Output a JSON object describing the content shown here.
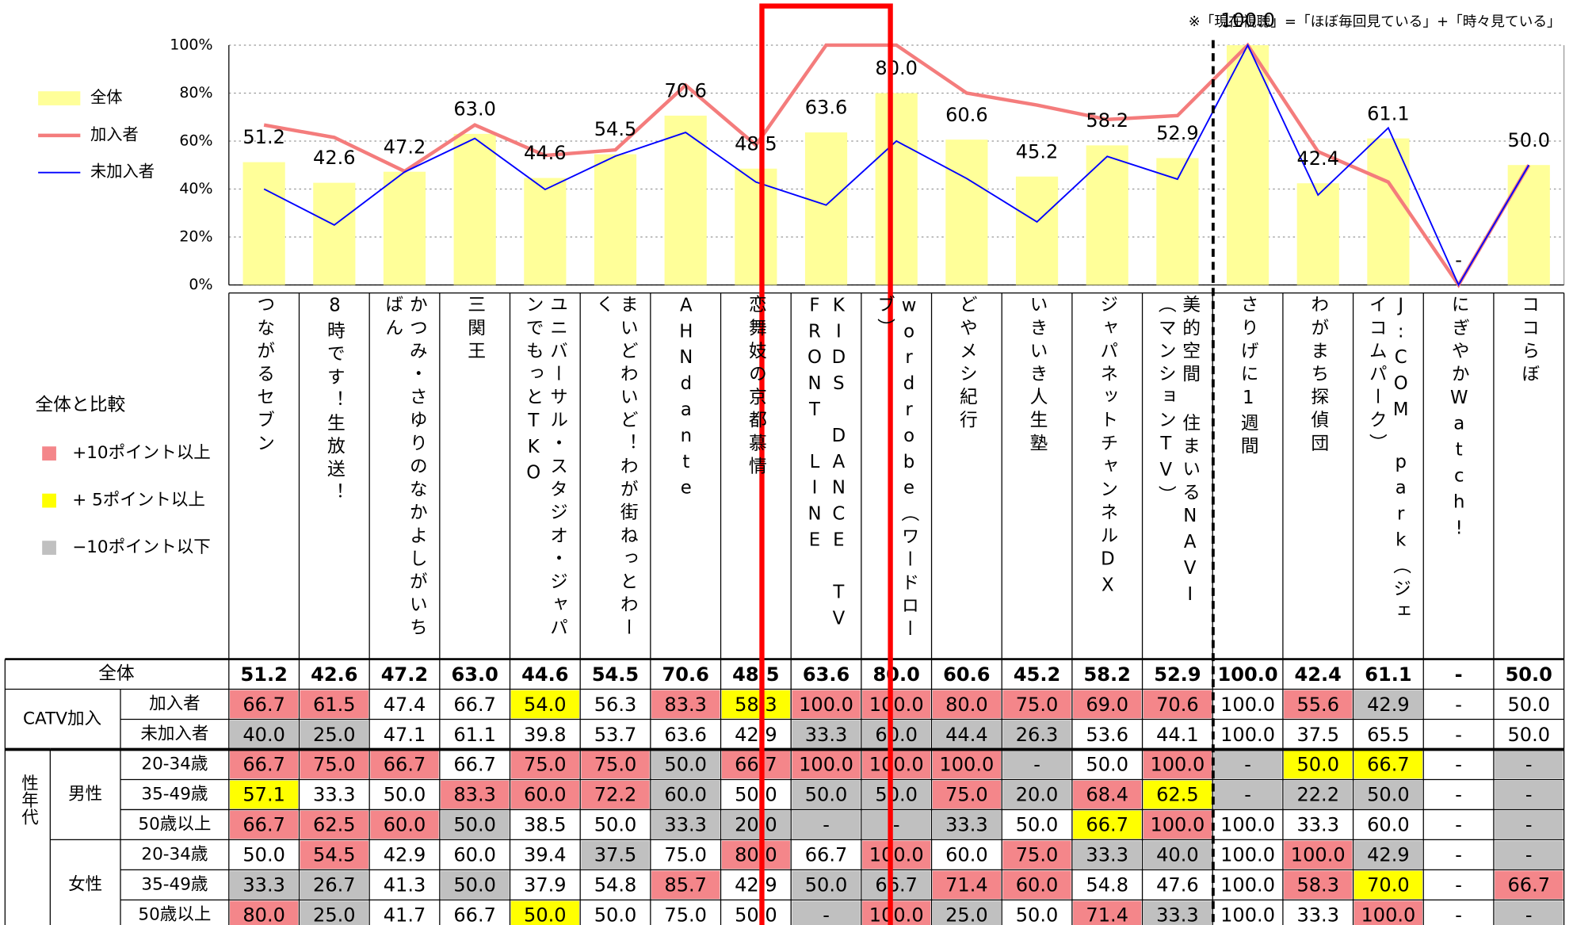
{
  "note": "※「現在視聴」=「ほぼ毎回見ている」+「時々見ている」",
  "chart_data": {
    "type": "bar",
    "categories": [
      "つながるセブン",
      "8時です！生放送！",
      "かつみ・さゆりのなかよしがいちばん",
      "三関王",
      "ユニバーサル・スタジオ・ジャパンでもっとTKO",
      "まいどわいど！わが街ねっとわーく",
      "AHNdante",
      "恋舞妓の京都慕情",
      "KIDS DANCE TV FRONT LINE",
      "wordrobe（ワードローブ）",
      "どやメシ紀行",
      "いきいき人生塾",
      "ジャパネットチャンネルDX",
      "美的空間 住まいるNAVI（マンションTV）",
      "さりげに1週間",
      "わがまち探偵団",
      "J:COM park（ジェイコムパーク）",
      "にぎやかWatch!",
      "ココらぼ"
    ],
    "series": [
      {
        "name": "全体",
        "type": "bar",
        "color": "#ffff99",
        "values": [
          51.2,
          42.6,
          47.2,
          63,
          44.6,
          54.5,
          70.6,
          48.5,
          63.6,
          80,
          60.6,
          45.2,
          58.2,
          52.9,
          100,
          42.4,
          61.1,
          null,
          50
        ],
        "value_labels": [
          "51.2",
          "42.6",
          "47.2",
          "63.0",
          "44.6",
          "54.5",
          "70.6",
          "48.5",
          "63.6",
          "80.0",
          "60.6",
          "45.2",
          "58.2",
          "52.9",
          "100.0",
          "42.4",
          "61.1",
          "-",
          "50.0"
        ]
      },
      {
        "name": "加入者",
        "type": "line",
        "color": "#f47c7c",
        "values": [
          66.7,
          61.5,
          47.4,
          66.7,
          54,
          56.3,
          83.3,
          58.3,
          100,
          100,
          80,
          75,
          69,
          70.6,
          100,
          55.6,
          42.9,
          0,
          50
        ]
      },
      {
        "name": "未加入者",
        "type": "line",
        "color": "#0000ff",
        "values": [
          40,
          25,
          47.1,
          61.1,
          39.8,
          53.7,
          63.6,
          42.9,
          33.3,
          60,
          44.4,
          26.3,
          53.6,
          44.1,
          100,
          37.5,
          65.5,
          0,
          50
        ]
      }
    ],
    "ylim": [
      0,
      100
    ],
    "yticks": [
      {
        "value": 0,
        "label": "0%"
      },
      {
        "value": 20,
        "label": "20%"
      },
      {
        "value": 40,
        "label": "40%"
      },
      {
        "value": 60,
        "label": "60%"
      },
      {
        "value": 80,
        "label": "80%"
      },
      {
        "value": 100,
        "label": "100%"
      }
    ],
    "grid": true
  },
  "comparison_legend": {
    "title": "全体と比較",
    "items": [
      {
        "label": "+10ポイント以上",
        "color": "#f4868a"
      },
      {
        "label": "+ 5ポイント以上",
        "color": "#ffff00"
      },
      {
        "label": "−10ポイント以下",
        "color": "#c0c0c0"
      }
    ]
  },
  "table": {
    "total": {
      "label": "全体",
      "cells": [
        "51.2",
        "42.6",
        "47.2",
        "63.0",
        "44.6",
        "54.5",
        "70.6",
        "48.5",
        "63.6",
        "80.0",
        "60.6",
        "45.2",
        "58.2",
        "52.9",
        "100.0",
        "42.4",
        "61.1",
        "-",
        "50.0"
      ]
    },
    "catv": {
      "label": "CATV加入",
      "rows": [
        {
          "label": "加入者",
          "cells": [
            "66.7",
            "61.5",
            "47.4",
            "66.7",
            "54.0",
            "56.3",
            "83.3",
            "58.3",
            "100.0",
            "100.0",
            "80.0",
            "75.0",
            "69.0",
            "70.6",
            "100.0",
            "55.6",
            "42.9",
            "-",
            "50.0"
          ],
          "fills": [
            0,
            0,
            null,
            null,
            1,
            null,
            0,
            1,
            0,
            0,
            0,
            0,
            0,
            0,
            null,
            0,
            2,
            null,
            null
          ]
        },
        {
          "label": "未加入者",
          "cells": [
            "40.0",
            "25.0",
            "47.1",
            "61.1",
            "39.8",
            "53.7",
            "63.6",
            "42.9",
            "33.3",
            "60.0",
            "44.4",
            "26.3",
            "53.6",
            "44.1",
            "100.0",
            "37.5",
            "65.5",
            "-",
            "50.0"
          ],
          "fills": [
            2,
            2,
            null,
            null,
            null,
            null,
            null,
            null,
            2,
            2,
            2,
            2,
            null,
            null,
            null,
            null,
            null,
            null,
            null
          ]
        }
      ]
    },
    "demo": {
      "label": "性年代",
      "groups": [
        {
          "label": "男性",
          "rows": [
            {
              "label": "20-34歳",
              "cells": [
                "66.7",
                "75.0",
                "66.7",
                "66.7",
                "75.0",
                "75.0",
                "50.0",
                "66.7",
                "100.0",
                "100.0",
                "100.0",
                "-",
                "50.0",
                "100.0",
                "-",
                "50.0",
                "66.7",
                "-",
                "-"
              ],
              "fills": [
                0,
                0,
                0,
                null,
                0,
                0,
                2,
                0,
                0,
                0,
                0,
                2,
                null,
                0,
                2,
                1,
                1,
                null,
                2
              ]
            },
            {
              "label": "35-49歳",
              "cells": [
                "57.1",
                "33.3",
                "50.0",
                "83.3",
                "60.0",
                "72.2",
                "60.0",
                "50.0",
                "50.0",
                "50.0",
                "75.0",
                "20.0",
                "68.4",
                "62.5",
                "-",
                "22.2",
                "50.0",
                "-",
                "-"
              ],
              "fills": [
                1,
                null,
                null,
                0,
                0,
                0,
                2,
                null,
                2,
                2,
                0,
                2,
                0,
                1,
                2,
                2,
                2,
                null,
                2
              ]
            },
            {
              "label": "50歳以上",
              "cells": [
                "66.7",
                "62.5",
                "60.0",
                "50.0",
                "38.5",
                "50.0",
                "33.3",
                "20.0",
                "-",
                "-",
                "33.3",
                "50.0",
                "66.7",
                "100.0",
                "100.0",
                "33.3",
                "60.0",
                "-",
                "-"
              ],
              "fills": [
                0,
                0,
                0,
                2,
                null,
                null,
                2,
                2,
                2,
                2,
                2,
                null,
                1,
                0,
                null,
                null,
                null,
                null,
                2
              ]
            }
          ]
        },
        {
          "label": "女性",
          "rows": [
            {
              "label": "20-34歳",
              "cells": [
                "50.0",
                "54.5",
                "42.9",
                "60.0",
                "39.4",
                "37.5",
                "75.0",
                "80.0",
                "66.7",
                "100.0",
                "60.0",
                "75.0",
                "33.3",
                "40.0",
                "100.0",
                "100.0",
                "42.9",
                "-",
                "-"
              ],
              "fills": [
                null,
                0,
                null,
                null,
                null,
                2,
                null,
                0,
                null,
                0,
                null,
                0,
                2,
                2,
                null,
                0,
                2,
                null,
                2
              ]
            },
            {
              "label": "35-49歳",
              "cells": [
                "33.3",
                "26.7",
                "41.3",
                "50.0",
                "37.9",
                "54.8",
                "85.7",
                "42.9",
                "50.0",
                "66.7",
                "71.4",
                "60.0",
                "54.8",
                "47.6",
                "100.0",
                "58.3",
                "70.0",
                "-",
                "66.7"
              ],
              "fills": [
                2,
                2,
                null,
                2,
                null,
                null,
                0,
                null,
                2,
                2,
                0,
                0,
                null,
                null,
                null,
                0,
                1,
                null,
                0
              ]
            },
            {
              "label": "50歳以上",
              "cells": [
                "80.0",
                "25.0",
                "41.7",
                "66.7",
                "50.0",
                "50.0",
                "75.0",
                "50.0",
                "-",
                "100.0",
                "25.0",
                "50.0",
                "71.4",
                "33.3",
                "100.0",
                "33.3",
                "100.0",
                "-",
                "-"
              ],
              "fills": [
                0,
                2,
                null,
                null,
                1,
                null,
                null,
                null,
                2,
                0,
                2,
                null,
                0,
                2,
                null,
                null,
                0,
                null,
                2
              ]
            }
          ]
        }
      ]
    }
  }
}
